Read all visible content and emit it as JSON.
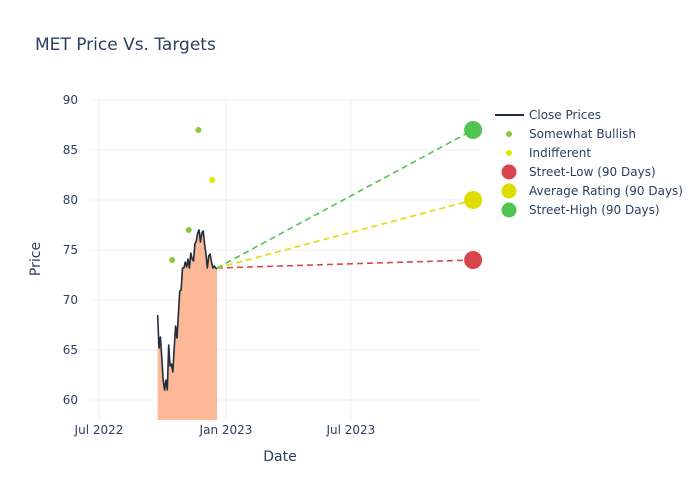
{
  "chart_data": {
    "type": "line",
    "title": "MET Price Vs. Targets",
    "xlabel": "Date",
    "ylabel": "Price",
    "xlim": [
      "2022-06-18",
      "2024-01-04"
    ],
    "ylim": [
      58,
      90
    ],
    "grid": true,
    "legend_position": "top-right",
    "x_ticks": [
      {
        "date": "2022-07-01",
        "label": "Jul 2022"
      },
      {
        "date": "2023-01-01",
        "label": "Jan 2023"
      },
      {
        "date": "2023-07-01",
        "label": "Jul 2023"
      }
    ],
    "y_ticks": [
      60,
      65,
      70,
      75,
      80,
      85,
      90
    ],
    "close_prices": {
      "name": "Close Prices",
      "line_color": "#1f2d3d",
      "fill_color": "#fcb897",
      "x": [
        "2022-09-24",
        "2022-09-26",
        "2022-09-28",
        "2022-09-30",
        "2022-10-02",
        "2022-10-04",
        "2022-10-06",
        "2022-10-08",
        "2022-10-10",
        "2022-10-12",
        "2022-10-14",
        "2022-10-16",
        "2022-10-18",
        "2022-10-20",
        "2022-10-22",
        "2022-10-24",
        "2022-10-26",
        "2022-10-28",
        "2022-10-30",
        "2022-11-01",
        "2022-11-03",
        "2022-11-05",
        "2022-11-07",
        "2022-11-09",
        "2022-11-11",
        "2022-11-13",
        "2022-11-15",
        "2022-11-17",
        "2022-11-19",
        "2022-11-21",
        "2022-11-23",
        "2022-11-25",
        "2022-11-27",
        "2022-11-29",
        "2022-12-01",
        "2022-12-03",
        "2022-12-05",
        "2022-12-07",
        "2022-12-09",
        "2022-12-11",
        "2022-12-13",
        "2022-12-15",
        "2022-12-17",
        "2022-12-19"
      ],
      "y": [
        68.5,
        65.2,
        66.3,
        64.2,
        62,
        61,
        62,
        61,
        65.5,
        63.4,
        63.6,
        62.8,
        65.2,
        67.4,
        66.2,
        68.5,
        70.9,
        71,
        73.2,
        73.2,
        73.8,
        73.3,
        74.1,
        73.2,
        74.7,
        74.1,
        73.9,
        75.6,
        75.9,
        76.7,
        77,
        75.8,
        76.7,
        76.9,
        75.6,
        74.6,
        73.2,
        74.4,
        74.6,
        73.8,
        73.2,
        73.4,
        73.2,
        73.1
      ]
    },
    "somewhat_bullish": {
      "name": "Somewhat Bullish",
      "color": "#8cc63f",
      "points": [
        {
          "x": "2022-10-15",
          "y": 74
        },
        {
          "x": "2022-11-08",
          "y": 77
        },
        {
          "x": "2022-11-22",
          "y": 87
        }
      ]
    },
    "indifferent": {
      "name": "Indifferent",
      "color": "#e6e600",
      "points": [
        {
          "x": "2022-12-12",
          "y": 82
        }
      ]
    },
    "targets": [
      {
        "name": "Street-Low (90 Days)",
        "color": "#d9434d",
        "start": {
          "x": "2022-12-19",
          "y": 73.2
        },
        "end": {
          "x": "2023-12-25",
          "y": 74
        }
      },
      {
        "name": "Average Rating (90 Days)",
        "color": "#dddd00",
        "start": {
          "x": "2022-12-19",
          "y": 73.2
        },
        "end": {
          "x": "2023-12-25",
          "y": 80
        }
      },
      {
        "name": "Street-High (90 Days)",
        "color": "#52c452",
        "start": {
          "x": "2022-12-19",
          "y": 73.2
        },
        "end": {
          "x": "2023-12-25",
          "y": 87
        }
      }
    ],
    "legend": [
      {
        "label": "Close Prices",
        "symbol": "line",
        "color": "#1f2d3d"
      },
      {
        "label": "Somewhat Bullish",
        "symbol": "small-dot",
        "color": "#8cc63f"
      },
      {
        "label": "Indifferent",
        "symbol": "small-dot",
        "color": "#e6e600"
      },
      {
        "label": "Street-Low (90 Days)",
        "symbol": "big-dot",
        "color": "#d9434d"
      },
      {
        "label": "Average Rating (90 Days)",
        "symbol": "big-dot",
        "color": "#dddd00"
      },
      {
        "label": "Street-High (90 Days)",
        "symbol": "big-dot",
        "color": "#52c452"
      }
    ]
  }
}
